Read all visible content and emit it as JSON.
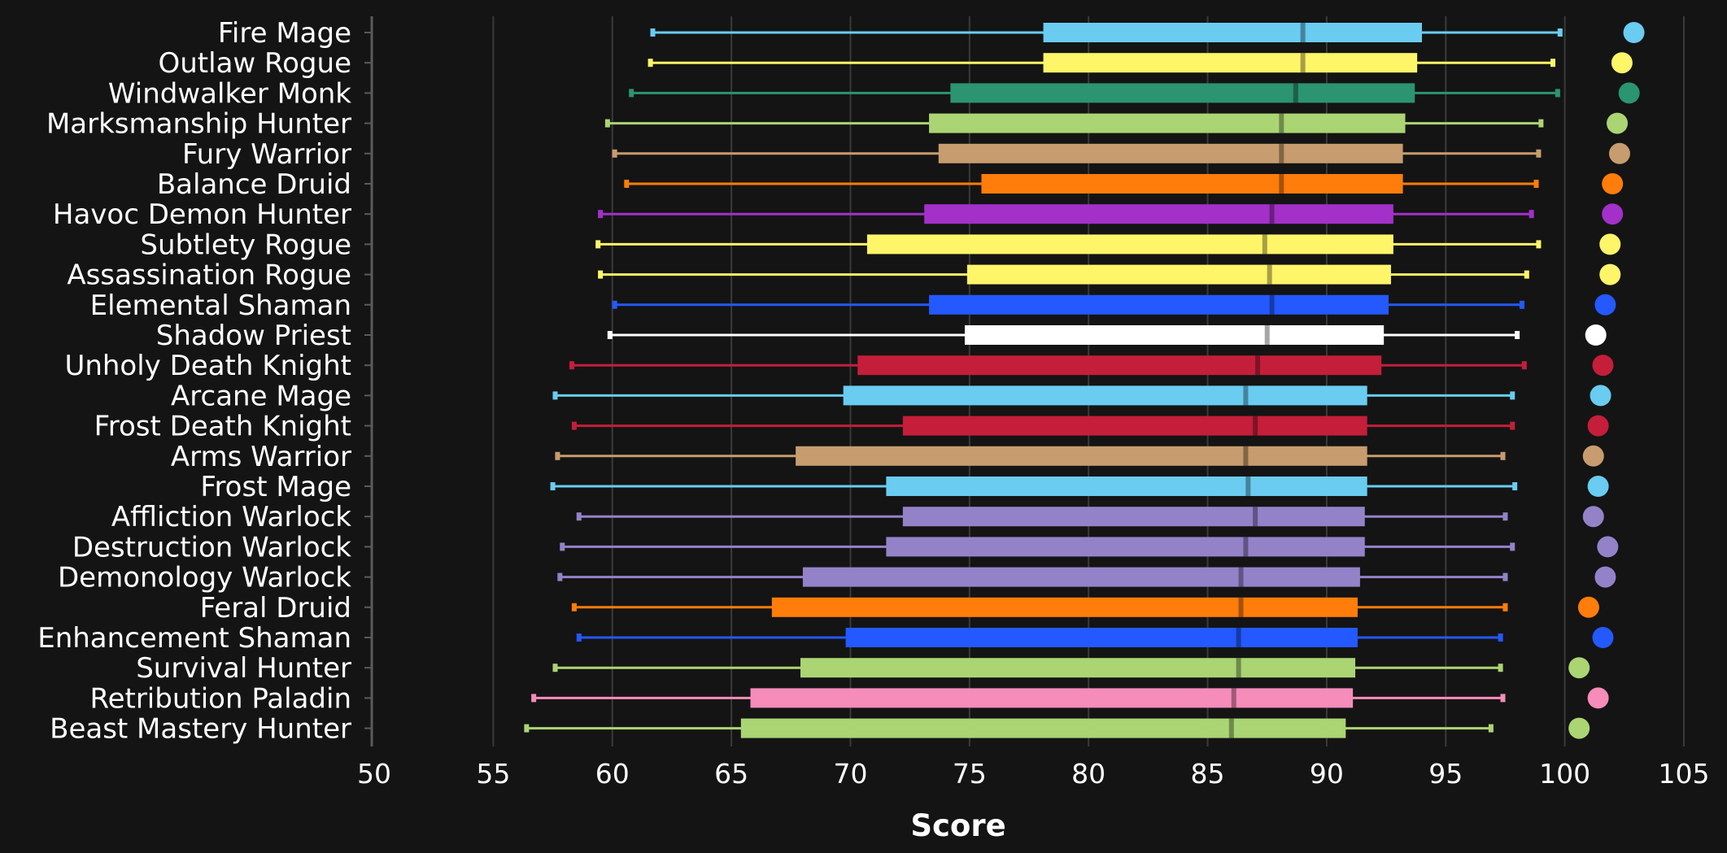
{
  "chart_data": {
    "type": "boxplot",
    "title": "",
    "xlabel": "Score",
    "ylabel": "",
    "xlim": [
      50,
      105
    ],
    "x_ticks": [
      50,
      55,
      60,
      65,
      70,
      75,
      80,
      85,
      90,
      95,
      100,
      105
    ],
    "grid": "vertical",
    "legend": "none",
    "series": [
      {
        "name": "Fire Mage",
        "color": "#69ccf0",
        "whisker_low": 61.7,
        "q1": 78.1,
        "median": 89.0,
        "q3": 94.0,
        "whisker_high": 99.8,
        "max": 102.9
      },
      {
        "name": "Outlaw Rogue",
        "color": "#fff569",
        "whisker_low": 61.6,
        "q1": 78.1,
        "median": 89.0,
        "q3": 93.8,
        "whisker_high": 99.5,
        "max": 102.4
      },
      {
        "name": "Windwalker Monk",
        "color": "#2b9470",
        "whisker_low": 60.8,
        "q1": 74.2,
        "median": 88.7,
        "q3": 93.7,
        "whisker_high": 99.7,
        "max": 102.7
      },
      {
        "name": "Marksmanship Hunter",
        "color": "#abd473",
        "whisker_low": 59.8,
        "q1": 73.3,
        "median": 88.1,
        "q3": 93.3,
        "whisker_high": 99.0,
        "max": 102.2
      },
      {
        "name": "Fury Warrior",
        "color": "#c79c6e",
        "whisker_low": 60.1,
        "q1": 73.7,
        "median": 88.1,
        "q3": 93.2,
        "whisker_high": 98.9,
        "max": 102.3
      },
      {
        "name": "Balance Druid",
        "color": "#ff7d0a",
        "whisker_low": 60.6,
        "q1": 75.5,
        "median": 88.1,
        "q3": 93.2,
        "whisker_high": 98.8,
        "max": 102.0
      },
      {
        "name": "Havoc Demon Hunter",
        "color": "#a330c9",
        "whisker_low": 59.5,
        "q1": 73.1,
        "median": 87.7,
        "q3": 92.8,
        "whisker_high": 98.6,
        "max": 102.0
      },
      {
        "name": "Subtlety Rogue",
        "color": "#fff569",
        "whisker_low": 59.4,
        "q1": 70.7,
        "median": 87.4,
        "q3": 92.8,
        "whisker_high": 98.9,
        "max": 101.9
      },
      {
        "name": "Assassination Rogue",
        "color": "#fff569",
        "whisker_low": 59.5,
        "q1": 74.9,
        "median": 87.6,
        "q3": 92.7,
        "whisker_high": 98.4,
        "max": 101.9
      },
      {
        "name": "Elemental Shaman",
        "color": "#2359ff",
        "whisker_low": 60.1,
        "q1": 73.3,
        "median": 87.7,
        "q3": 92.6,
        "whisker_high": 98.2,
        "max": 101.7
      },
      {
        "name": "Shadow Priest",
        "color": "#ffffff",
        "whisker_low": 59.9,
        "q1": 74.8,
        "median": 87.5,
        "q3": 92.4,
        "whisker_high": 98.0,
        "max": 101.3
      },
      {
        "name": "Unholy Death Knight",
        "color": "#c41e3a",
        "whisker_low": 58.3,
        "q1": 70.3,
        "median": 87.1,
        "q3": 92.3,
        "whisker_high": 98.3,
        "max": 101.6
      },
      {
        "name": "Arcane Mage",
        "color": "#69ccf0",
        "whisker_low": 57.6,
        "q1": 69.7,
        "median": 86.6,
        "q3": 91.7,
        "whisker_high": 97.8,
        "max": 101.5
      },
      {
        "name": "Frost Death Knight",
        "color": "#c41e3a",
        "whisker_low": 58.4,
        "q1": 72.2,
        "median": 87.0,
        "q3": 91.7,
        "whisker_high": 97.8,
        "max": 101.4
      },
      {
        "name": "Arms Warrior",
        "color": "#c79c6e",
        "whisker_low": 57.7,
        "q1": 67.7,
        "median": 86.6,
        "q3": 91.7,
        "whisker_high": 97.4,
        "max": 101.2
      },
      {
        "name": "Frost Mage",
        "color": "#69ccf0",
        "whisker_low": 57.5,
        "q1": 71.5,
        "median": 86.7,
        "q3": 91.7,
        "whisker_high": 97.9,
        "max": 101.4
      },
      {
        "name": "Affliction Warlock",
        "color": "#9482c9",
        "whisker_low": 58.6,
        "q1": 72.2,
        "median": 87.0,
        "q3": 91.6,
        "whisker_high": 97.5,
        "max": 101.2
      },
      {
        "name": "Destruction Warlock",
        "color": "#9482c9",
        "whisker_low": 57.9,
        "q1": 71.5,
        "median": 86.6,
        "q3": 91.6,
        "whisker_high": 97.8,
        "max": 101.8
      },
      {
        "name": "Demonology Warlock",
        "color": "#9482c9",
        "whisker_low": 57.8,
        "q1": 68.0,
        "median": 86.4,
        "q3": 91.4,
        "whisker_high": 97.5,
        "max": 101.7
      },
      {
        "name": "Feral Druid",
        "color": "#ff7d0a",
        "whisker_low": 58.4,
        "q1": 66.7,
        "median": 86.4,
        "q3": 91.3,
        "whisker_high": 97.5,
        "max": 101.0
      },
      {
        "name": "Enhancement Shaman",
        "color": "#2359ff",
        "whisker_low": 58.6,
        "q1": 69.8,
        "median": 86.3,
        "q3": 91.3,
        "whisker_high": 97.3,
        "max": 101.6
      },
      {
        "name": "Survival Hunter",
        "color": "#abd473",
        "whisker_low": 57.6,
        "q1": 67.9,
        "median": 86.3,
        "q3": 91.2,
        "whisker_high": 97.3,
        "max": 100.6
      },
      {
        "name": "Retribution Paladin",
        "color": "#f58cba",
        "whisker_low": 56.7,
        "q1": 65.8,
        "median": 86.1,
        "q3": 91.1,
        "whisker_high": 97.4,
        "max": 101.4
      },
      {
        "name": "Beast Mastery Hunter",
        "color": "#abd473",
        "whisker_low": 56.4,
        "q1": 65.4,
        "median": 86.0,
        "q3": 90.8,
        "whisker_high": 96.9,
        "max": 100.6
      }
    ]
  },
  "colors": {
    "background": "#141414",
    "grid": "#3a3a3a",
    "axis": "#5a5a5a",
    "text": "#ffffff"
  }
}
